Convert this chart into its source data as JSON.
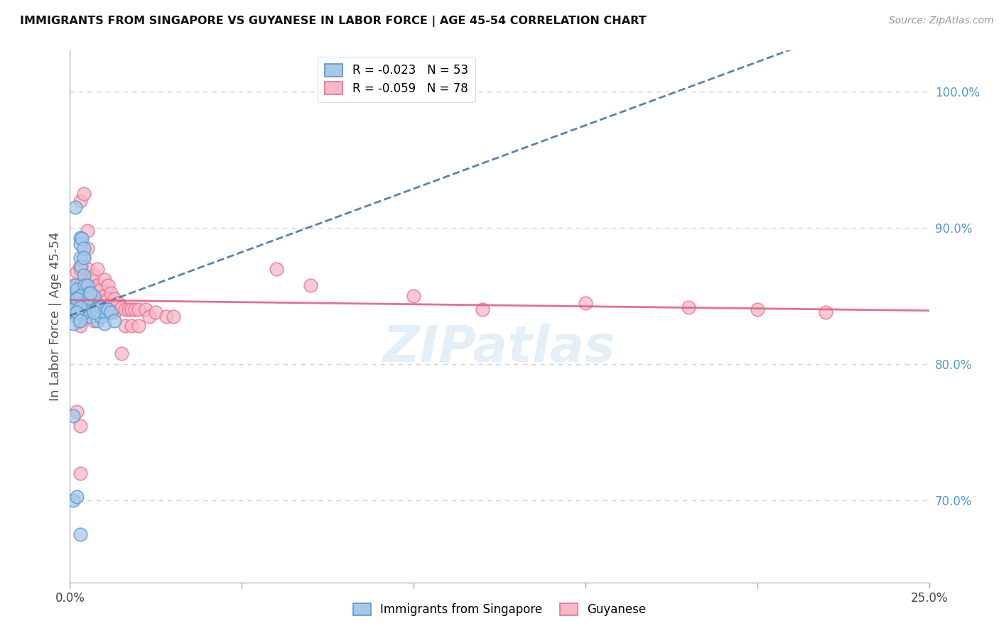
{
  "title": "IMMIGRANTS FROM SINGAPORE VS GUYANESE IN LABOR FORCE | AGE 45-54 CORRELATION CHART",
  "source": "Source: ZipAtlas.com",
  "ylabel": "In Labor Force | Age 45-54",
  "watermark": "ZIPatlas",
  "singapore_color": "#a8c8e8",
  "singapore_edge_color": "#5599cc",
  "singapore_line_color": "#4477aa",
  "guyanese_color": "#f8b8c8",
  "guyanese_edge_color": "#e87090",
  "guyanese_line_color": "#e06080",
  "R_singapore": -0.023,
  "N_singapore": 53,
  "R_guyanese": -0.059,
  "N_guyanese": 78,
  "xlim": [
    0.0,
    0.25
  ],
  "ylim": [
    0.64,
    1.03
  ],
  "y_ticks": [
    0.7,
    0.8,
    0.9,
    1.0
  ],
  "y_tick_labels": [
    "70.0%",
    "80.0%",
    "90.0%",
    "100.0%"
  ],
  "x_tick_positions": [
    0.0,
    0.05,
    0.1,
    0.15,
    0.2,
    0.25
  ],
  "x_tick_labels_shown": [
    "0.0%",
    "",
    "",
    "",
    "",
    "25.0%"
  ],
  "sg_x": [
    0.0008,
    0.001,
    0.0012,
    0.0015,
    0.0015,
    0.002,
    0.002,
    0.0022,
    0.0025,
    0.003,
    0.003,
    0.003,
    0.0032,
    0.0035,
    0.004,
    0.004,
    0.004,
    0.0042,
    0.0045,
    0.005,
    0.005,
    0.0055,
    0.006,
    0.006,
    0.0065,
    0.007,
    0.007,
    0.008,
    0.008,
    0.009,
    0.009,
    0.01,
    0.01,
    0.011,
    0.012,
    0.013,
    0.001,
    0.002,
    0.003,
    0.004,
    0.001,
    0.002,
    0.003,
    0.004,
    0.005,
    0.006,
    0.007,
    0.001,
    0.002,
    0.003,
    0.001,
    0.002,
    0.003
  ],
  "sg_y": [
    0.852,
    0.856,
    0.842,
    0.858,
    0.915,
    0.855,
    0.848,
    0.84,
    0.832,
    0.893,
    0.888,
    0.878,
    0.872,
    0.892,
    0.885,
    0.878,
    0.865,
    0.858,
    0.848,
    0.858,
    0.845,
    0.852,
    0.84,
    0.835,
    0.842,
    0.85,
    0.84,
    0.832,
    0.84,
    0.835,
    0.842,
    0.838,
    0.83,
    0.84,
    0.838,
    0.832,
    0.762,
    0.835,
    0.85,
    0.838,
    0.7,
    0.703,
    0.675,
    0.84,
    0.848,
    0.852,
    0.838,
    0.84,
    0.848,
    0.842,
    0.83,
    0.838,
    0.832
  ],
  "gy_x": [
    0.001,
    0.001,
    0.002,
    0.002,
    0.002,
    0.003,
    0.003,
    0.003,
    0.004,
    0.004,
    0.004,
    0.004,
    0.005,
    0.005,
    0.005,
    0.005,
    0.006,
    0.006,
    0.006,
    0.007,
    0.007,
    0.007,
    0.007,
    0.008,
    0.008,
    0.008,
    0.009,
    0.009,
    0.01,
    0.01,
    0.01,
    0.011,
    0.011,
    0.011,
    0.012,
    0.012,
    0.013,
    0.013,
    0.014,
    0.015,
    0.015,
    0.016,
    0.016,
    0.017,
    0.018,
    0.018,
    0.019,
    0.02,
    0.02,
    0.022,
    0.023,
    0.025,
    0.028,
    0.03,
    0.003,
    0.004,
    0.005,
    0.06,
    0.07,
    0.1,
    0.12,
    0.15,
    0.18,
    0.2,
    0.22,
    0.002,
    0.003,
    0.003,
    0.004,
    0.005,
    0.002,
    0.003,
    0.004,
    0.003,
    0.003,
    0.004,
    0.004,
    0.003
  ],
  "gy_y": [
    0.858,
    0.84,
    0.868,
    0.848,
    0.84,
    0.872,
    0.858,
    0.848,
    0.878,
    0.862,
    0.852,
    0.84,
    0.885,
    0.87,
    0.858,
    0.848,
    0.862,
    0.85,
    0.84,
    0.865,
    0.855,
    0.842,
    0.832,
    0.87,
    0.858,
    0.845,
    0.855,
    0.842,
    0.862,
    0.85,
    0.84,
    0.858,
    0.848,
    0.838,
    0.852,
    0.84,
    0.848,
    0.838,
    0.845,
    0.842,
    0.808,
    0.84,
    0.828,
    0.84,
    0.84,
    0.828,
    0.84,
    0.84,
    0.828,
    0.84,
    0.835,
    0.838,
    0.835,
    0.835,
    0.92,
    0.925,
    0.898,
    0.87,
    0.858,
    0.85,
    0.84,
    0.845,
    0.842,
    0.84,
    0.838,
    0.765,
    0.72,
    0.858,
    0.852,
    0.845,
    0.838,
    0.828,
    0.84,
    0.87,
    0.858,
    0.848,
    0.84,
    0.755
  ]
}
